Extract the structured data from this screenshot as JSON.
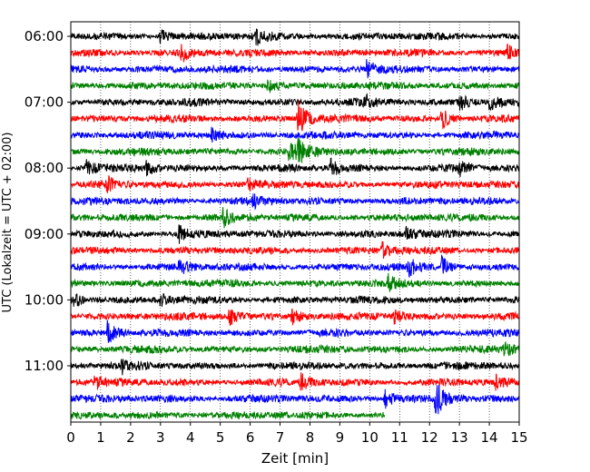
{
  "chart_data": {
    "type": "line",
    "title": "",
    "xlabel": "Zeit  [min]",
    "ylabel": "UTC (Lokalzeit = UTC + 02:00)",
    "xlim": [
      0,
      15
    ],
    "x_ticks": [
      "0",
      "1",
      "2",
      "3",
      "4",
      "5",
      "6",
      "7",
      "8",
      "9",
      "10",
      "11",
      "12",
      "13",
      "14",
      "15"
    ],
    "y_ticks": [
      "06:00",
      "07:00",
      "08:00",
      "09:00",
      "10:00",
      "11:00"
    ],
    "grid": "vertical dotted",
    "trace_count": 24,
    "trace_interval_min": 15,
    "series_colors": [
      "#000000",
      "#ff0000",
      "#0000ff",
      "#008000"
    ],
    "last_trace_end_min": 10.5,
    "events": [
      {
        "trace": 0,
        "t": 3.0,
        "amp": 0.7
      },
      {
        "trace": 0,
        "t": 6.2,
        "amp": 0.8
      },
      {
        "trace": 1,
        "t": 3.7,
        "amp": 0.9
      },
      {
        "trace": 1,
        "t": 14.6,
        "amp": 0.7
      },
      {
        "trace": 2,
        "t": 9.9,
        "amp": 0.9
      },
      {
        "trace": 3,
        "t": 6.6,
        "amp": 0.8
      },
      {
        "trace": 4,
        "t": 9.8,
        "amp": 0.7
      },
      {
        "trace": 4,
        "t": 13.0,
        "amp": 0.9
      },
      {
        "trace": 4,
        "t": 14.0,
        "amp": 0.8
      },
      {
        "trace": 5,
        "t": 7.6,
        "amp": 2.0
      },
      {
        "trace": 5,
        "t": 12.4,
        "amp": 1.1
      },
      {
        "trace": 6,
        "t": 4.7,
        "amp": 1.0
      },
      {
        "trace": 7,
        "t": 7.3,
        "amp": 1.2
      },
      {
        "trace": 7,
        "t": 7.6,
        "amp": 1.0
      },
      {
        "trace": 8,
        "t": 0.5,
        "amp": 0.8
      },
      {
        "trace": 8,
        "t": 2.5,
        "amp": 0.7
      },
      {
        "trace": 8,
        "t": 8.7,
        "amp": 1.0
      },
      {
        "trace": 8,
        "t": 13.0,
        "amp": 0.8
      },
      {
        "trace": 9,
        "t": 1.2,
        "amp": 0.8
      },
      {
        "trace": 9,
        "t": 5.9,
        "amp": 0.6
      },
      {
        "trace": 10,
        "t": 6.1,
        "amp": 0.6
      },
      {
        "trace": 11,
        "t": 5.1,
        "amp": 0.9
      },
      {
        "trace": 12,
        "t": 3.6,
        "amp": 1.0
      },
      {
        "trace": 12,
        "t": 11.2,
        "amp": 0.7
      },
      {
        "trace": 13,
        "t": 10.4,
        "amp": 0.9
      },
      {
        "trace": 14,
        "t": 3.6,
        "amp": 1.0
      },
      {
        "trace": 14,
        "t": 12.4,
        "amp": 1.1
      },
      {
        "trace": 14,
        "t": 11.3,
        "amp": 0.8
      },
      {
        "trace": 15,
        "t": 10.6,
        "amp": 0.8
      },
      {
        "trace": 16,
        "t": 0.1,
        "amp": 0.8
      },
      {
        "trace": 16,
        "t": 3.0,
        "amp": 0.7
      },
      {
        "trace": 17,
        "t": 5.3,
        "amp": 1.0
      },
      {
        "trace": 17,
        "t": 7.4,
        "amp": 0.8
      },
      {
        "trace": 17,
        "t": 10.8,
        "amp": 0.9
      },
      {
        "trace": 18,
        "t": 1.2,
        "amp": 1.3
      },
      {
        "trace": 19,
        "t": 14.5,
        "amp": 0.8
      },
      {
        "trace": 20,
        "t": 1.7,
        "amp": 0.7
      },
      {
        "trace": 21,
        "t": 0.8,
        "amp": 0.7
      },
      {
        "trace": 21,
        "t": 7.7,
        "amp": 0.8
      },
      {
        "trace": 21,
        "t": 14.2,
        "amp": 0.8
      },
      {
        "trace": 22,
        "t": 12.2,
        "amp": 2.0
      },
      {
        "trace": 22,
        "t": 10.5,
        "amp": 1.0
      }
    ]
  }
}
